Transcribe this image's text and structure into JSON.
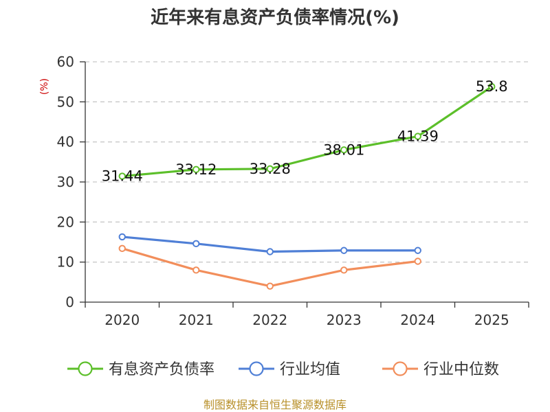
{
  "chart_data": {
    "type": "line",
    "title": "近年来有息资产负债率情况(%)",
    "ylabel": "(%)",
    "xlabel": "",
    "categories": [
      "2020",
      "2021",
      "2022",
      "2023",
      "2024",
      "2025"
    ],
    "ylim": [
      0,
      60
    ],
    "yticks": [
      0,
      10,
      20,
      30,
      40,
      50,
      60
    ],
    "grid": true,
    "legend_position": "bottom",
    "series": [
      {
        "name": "有息资产负债率",
        "color": "#5cbf2a",
        "values": [
          31.44,
          33.12,
          33.28,
          38.01,
          41.39,
          53.8
        ],
        "labels": [
          "31.44",
          "33.12",
          "33.28",
          "38.01",
          "41.39",
          "53.8"
        ]
      },
      {
        "name": "行业均值",
        "color": "#4f7fd6",
        "values": [
          16.3,
          14.6,
          12.6,
          12.9,
          12.9,
          null
        ]
      },
      {
        "name": "行业中位数",
        "color": "#f28e5b",
        "values": [
          13.4,
          8.0,
          4.0,
          8.0,
          10.2,
          null
        ]
      }
    ]
  },
  "footer": "制图数据来自恒生聚源数据库"
}
